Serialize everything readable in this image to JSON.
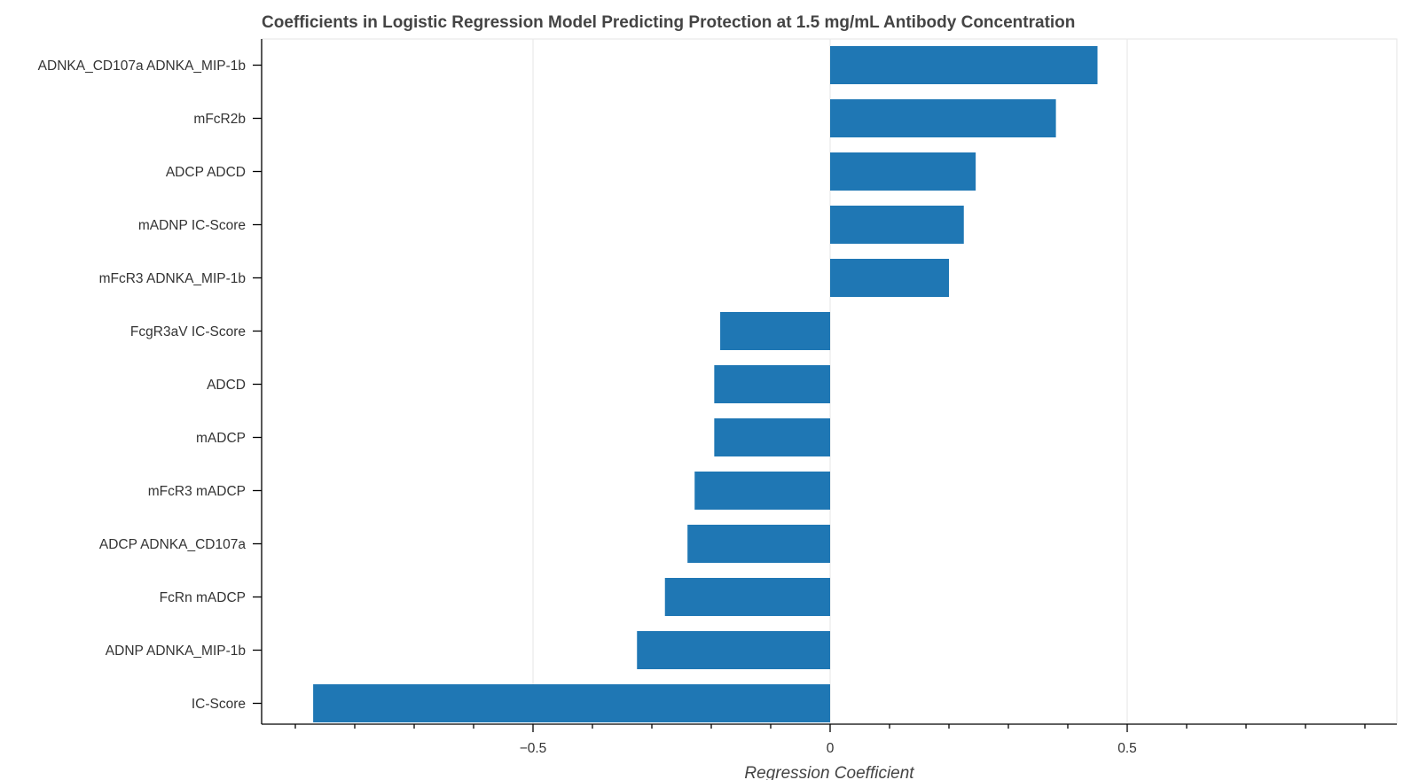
{
  "chart_data": {
    "type": "bar",
    "orientation": "horizontal",
    "title": "Coefficients in Logistic Regression Model Predicting Protection at 1.5 mg/mL Antibody Concentration",
    "xlabel": "Regression Coefficient",
    "ylabel": "",
    "xlim": [
      -0.9,
      0.95
    ],
    "xticks": [
      -0.5,
      0,
      0.5
    ],
    "xtick_labels": [
      "−0.5",
      "0",
      "0.5"
    ],
    "minor_step": 0.1,
    "grid": true,
    "bar_color": "#1f77b4",
    "categories": [
      "ADNKA_CD107a ADNKA_MIP-1b",
      "mFcR2b",
      "ADCP ADCD",
      "mADNP IC-Score",
      "mFcR3 ADNKA_MIP-1b",
      "FcgR3aV IC-Score",
      "ADCD",
      "mADCP",
      "mFcR3 mADCP",
      "ADCP ADNKA_CD107a",
      "FcRn mADCP",
      "ADNP ADNKA_MIP-1b",
      "IC-Score"
    ],
    "values": [
      0.45,
      0.38,
      0.245,
      0.225,
      0.2,
      -0.185,
      -0.195,
      -0.195,
      -0.228,
      -0.24,
      -0.278,
      -0.325,
      -0.87
    ]
  }
}
